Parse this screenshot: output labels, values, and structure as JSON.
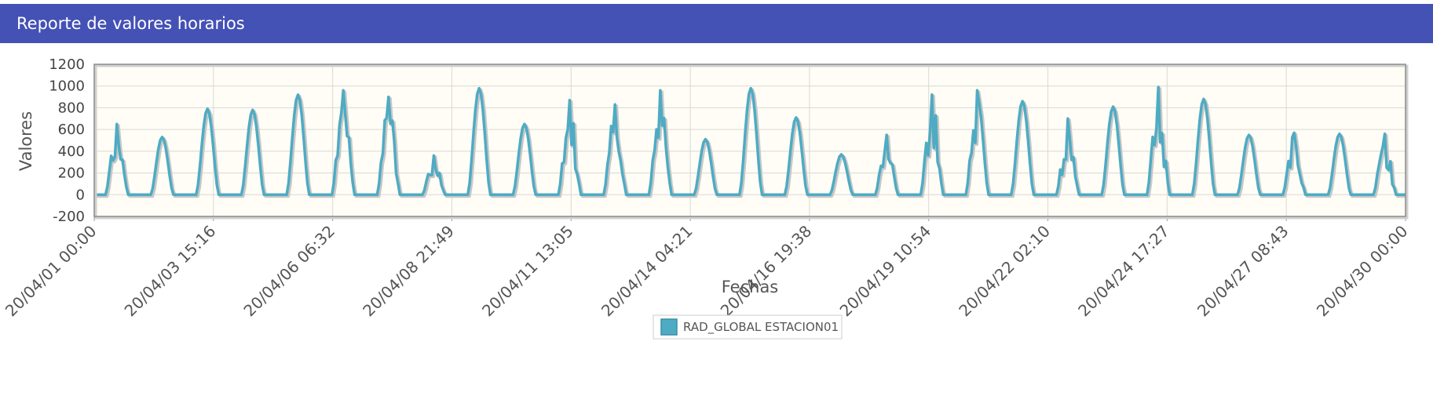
{
  "header": {
    "title": "Reporte de valores horarios"
  },
  "chart_data": {
    "type": "line",
    "title": "",
    "xlabel": "Fechas",
    "ylabel": "Valores",
    "ylim": [
      -200,
      1200
    ],
    "yticks": [
      1200,
      1000,
      800,
      600,
      400,
      200,
      0,
      -200
    ],
    "xticks": [
      "20/04/01 00:00",
      "20/04/03 15:16",
      "20/04/06 06:32",
      "20/04/08 21:49",
      "20/04/11 13:05",
      "20/04/14 04:21",
      "20/04/16 19:38",
      "20/04/19 10:54",
      "20/04/22 02:10",
      "20/04/24 17:27",
      "20/04/27 08:43",
      "20/04/30 00:00"
    ],
    "grid": true,
    "legend_position": "bottom",
    "series": [
      {
        "name": "RAD_GLOBAL ESTACION01",
        "color": "#4eabc3",
        "daily_peaks": [
          650,
          530,
          790,
          780,
          920,
          960,
          900,
          360,
          980,
          650,
          870,
          830,
          960,
          510,
          980,
          710,
          370,
          550,
          920,
          960,
          860,
          700,
          810,
          990,
          880,
          550,
          570,
          560,
          560
        ]
      }
    ]
  }
}
